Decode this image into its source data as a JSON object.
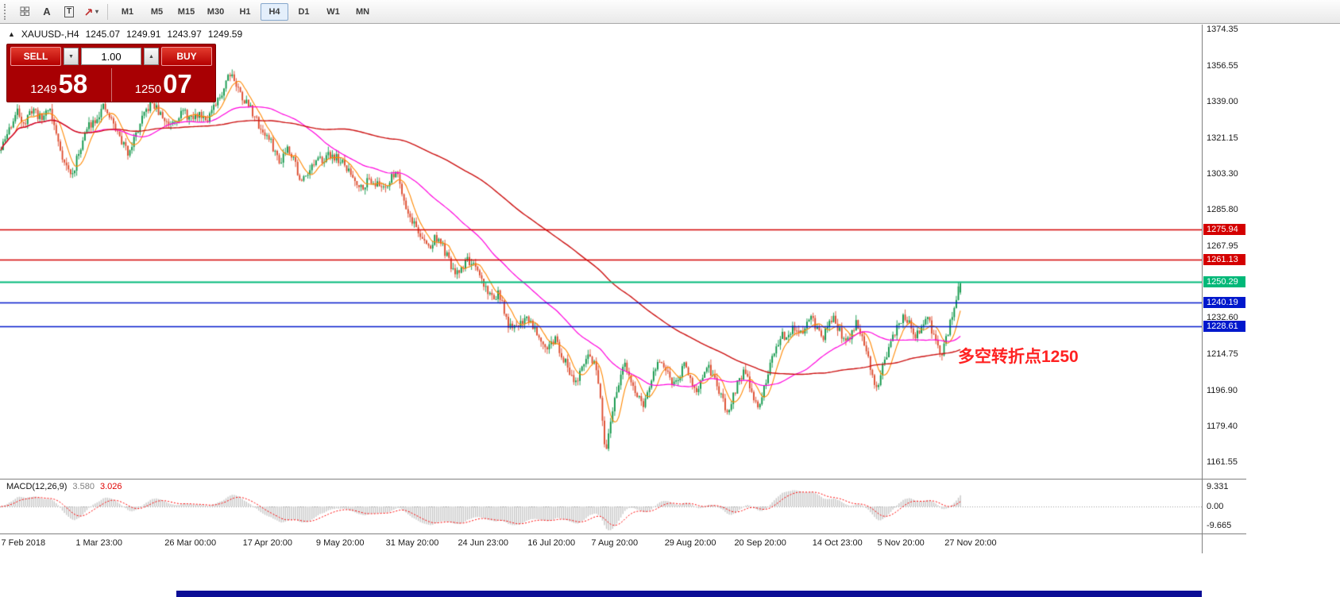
{
  "toolbar": {
    "timeframes": [
      "M1",
      "M5",
      "M15",
      "M30",
      "H1",
      "H4",
      "D1",
      "W1",
      "MN"
    ],
    "active_timeframe": "H4",
    "tools": {
      "text_tool": "A",
      "label_tool": "T"
    }
  },
  "icons": {
    "dropdown_caret": "▾",
    "volume_down": "▼",
    "volume_up": "▲",
    "symbol_arrow": "▲"
  },
  "header": {
    "symbol": "XAUUSD-,H4",
    "open": "1245.07",
    "high": "1249.91",
    "low": "1243.97",
    "close": "1249.59"
  },
  "trade_panel": {
    "sell_label": "SELL",
    "buy_label": "BUY",
    "volume": "1.00",
    "bid_small": "1249",
    "bid_big": "58",
    "ask_small": "1250",
    "ask_big": "07"
  },
  "annotation": {
    "text": "多空转折点1250",
    "color": "#ff2222"
  },
  "macd_panel": {
    "name": "MACD(12,26,9)",
    "value_main": "3.580",
    "value_signal": "3.026",
    "axis_labels": [
      "9.331",
      "0.00",
      "-9.665"
    ]
  },
  "chart_data": {
    "type": "candlestick",
    "title": "XAUUSD-,H4",
    "symbol": "XAUUSD-",
    "timeframe": "H4",
    "ylim": [
      1153.5,
      1376.8
    ],
    "y_axis_labels": [
      "1374.35",
      "1356.55",
      "1339.00",
      "1321.15",
      "1303.30",
      "1285.80",
      "1267.95",
      "1232.60",
      "1214.75",
      "1196.90",
      "1179.40",
      "1161.55"
    ],
    "x_axis": {
      "labels": [
        "7 Feb 2018",
        "1 Mar 23:00",
        "26 Mar 00:00",
        "17 Apr 20:00",
        "9 May 20:00",
        "31 May 20:00",
        "24 Jun 23:00",
        "16 Jul 20:00",
        "7 Aug 20:00",
        "29 Aug 20:00",
        "20 Sep 20:00",
        "14 Oct 23:00",
        "5 Nov 20:00",
        "27 Nov 20:00"
      ],
      "positions": [
        0.001,
        0.063,
        0.137,
        0.202,
        0.263,
        0.321,
        0.381,
        0.439,
        0.492,
        0.553,
        0.611,
        0.676,
        0.73,
        0.786
      ]
    },
    "last_bar": {
      "open": 1245.07,
      "high": 1249.91,
      "low": 1243.97,
      "close": 1249.59
    },
    "h_lines": [
      {
        "price": 1275.94,
        "color": "#d40000",
        "width": 1.5,
        "badge": "1275.94"
      },
      {
        "price": 1261.13,
        "color": "#d40000",
        "width": 1.5,
        "badge": "1261.13"
      },
      {
        "price": 1250.29,
        "color": "#00b878",
        "width": 2,
        "badge": "1250.29"
      },
      {
        "price": 1240.19,
        "color": "#0018cc",
        "width": 1.5,
        "badge": "1240.19"
      },
      {
        "price": 1228.61,
        "color": "#0018cc",
        "width": 1.5,
        "badge": "1228.61"
      }
    ],
    "moving_averages": [
      {
        "period": 8,
        "color": "#ff8800",
        "width": 1.1
      },
      {
        "period": 45,
        "color": "#ff00dd",
        "width": 1.2
      },
      {
        "period": 130,
        "color": "#cc1111",
        "width": 1.4
      }
    ],
    "bar_count": 470,
    "plot_fraction": 0.8,
    "volatility": 3.0,
    "seed": 11,
    "colors": {
      "up": "#0e9648",
      "down": "#dd4a2c"
    },
    "macd": {
      "fast": 12,
      "slow": 26,
      "signal_period": 9,
      "hist_color": "#c6c6c6",
      "signal_color": "#ff0000",
      "zero_color": "#9a9a9a"
    },
    "price_path": [
      [
        0.0,
        1315
      ],
      [
        0.008,
        1325
      ],
      [
        0.017,
        1334
      ],
      [
        0.025,
        1328
      ],
      [
        0.033,
        1336
      ],
      [
        0.042,
        1330
      ],
      [
        0.05,
        1337
      ],
      [
        0.058,
        1322
      ],
      [
        0.066,
        1309
      ],
      [
        0.074,
        1302
      ],
      [
        0.083,
        1317
      ],
      [
        0.091,
        1327
      ],
      [
        0.099,
        1331
      ],
      [
        0.107,
        1336
      ],
      [
        0.116,
        1329
      ],
      [
        0.124,
        1321
      ],
      [
        0.132,
        1314
      ],
      [
        0.14,
        1322
      ],
      [
        0.149,
        1332
      ],
      [
        0.157,
        1339
      ],
      [
        0.165,
        1333
      ],
      [
        0.174,
        1328
      ],
      [
        0.182,
        1331
      ],
      [
        0.19,
        1334
      ],
      [
        0.198,
        1330
      ],
      [
        0.207,
        1333
      ],
      [
        0.215,
        1331
      ],
      [
        0.223,
        1336
      ],
      [
        0.231,
        1344
      ],
      [
        0.236,
        1352
      ],
      [
        0.24,
        1354
      ],
      [
        0.245,
        1347
      ],
      [
        0.253,
        1340
      ],
      [
        0.26,
        1336
      ],
      [
        0.27,
        1326
      ],
      [
        0.28,
        1320
      ],
      [
        0.285,
        1315
      ],
      [
        0.29,
        1309
      ],
      [
        0.298,
        1317
      ],
      [
        0.306,
        1311
      ],
      [
        0.312,
        1298
      ],
      [
        0.318,
        1304
      ],
      [
        0.326,
        1308
      ],
      [
        0.335,
        1311
      ],
      [
        0.345,
        1313
      ],
      [
        0.355,
        1309
      ],
      [
        0.365,
        1303
      ],
      [
        0.375,
        1297
      ],
      [
        0.385,
        1301
      ],
      [
        0.395,
        1297
      ],
      [
        0.405,
        1299
      ],
      [
        0.412,
        1306
      ],
      [
        0.418,
        1295
      ],
      [
        0.424,
        1284
      ],
      [
        0.432,
        1278
      ],
      [
        0.44,
        1270
      ],
      [
        0.448,
        1267
      ],
      [
        0.453,
        1273
      ],
      [
        0.46,
        1268
      ],
      [
        0.468,
        1259
      ],
      [
        0.474,
        1253
      ],
      [
        0.48,
        1257
      ],
      [
        0.486,
        1262
      ],
      [
        0.493,
        1257
      ],
      [
        0.5,
        1252
      ],
      [
        0.507,
        1246
      ],
      [
        0.513,
        1242
      ],
      [
        0.518,
        1245
      ],
      [
        0.523,
        1238
      ],
      [
        0.528,
        1230
      ],
      [
        0.533,
        1226
      ],
      [
        0.54,
        1230
      ],
      [
        0.548,
        1233
      ],
      [
        0.555,
        1229
      ],
      [
        0.562,
        1223
      ],
      [
        0.57,
        1218
      ],
      [
        0.578,
        1222
      ],
      [
        0.585,
        1214
      ],
      [
        0.592,
        1207
      ],
      [
        0.6,
        1201
      ],
      [
        0.607,
        1208
      ],
      [
        0.612,
        1215
      ],
      [
        0.618,
        1211
      ],
      [
        0.622,
        1203
      ],
      [
        0.626,
        1186
      ],
      [
        0.63,
        1163
      ],
      [
        0.634,
        1176
      ],
      [
        0.638,
        1189
      ],
      [
        0.643,
        1200
      ],
      [
        0.65,
        1209
      ],
      [
        0.657,
        1202
      ],
      [
        0.663,
        1194
      ],
      [
        0.669,
        1189
      ],
      [
        0.675,
        1197
      ],
      [
        0.681,
        1206
      ],
      [
        0.687,
        1212
      ],
      [
        0.693,
        1206
      ],
      [
        0.7,
        1200
      ],
      [
        0.707,
        1205
      ],
      [
        0.713,
        1210
      ],
      [
        0.719,
        1203
      ],
      [
        0.725,
        1197
      ],
      [
        0.731,
        1201
      ],
      [
        0.737,
        1208
      ],
      [
        0.742,
        1204
      ],
      [
        0.748,
        1197
      ],
      [
        0.753,
        1191
      ],
      [
        0.757,
        1184
      ],
      [
        0.762,
        1193
      ],
      [
        0.768,
        1201
      ],
      [
        0.774,
        1206
      ],
      [
        0.78,
        1200
      ],
      [
        0.785,
        1193
      ],
      [
        0.79,
        1189
      ],
      [
        0.796,
        1198
      ],
      [
        0.802,
        1209
      ],
      [
        0.808,
        1219
      ],
      [
        0.814,
        1225
      ],
      [
        0.82,
        1221
      ],
      [
        0.826,
        1228
      ],
      [
        0.832,
        1223
      ],
      [
        0.838,
        1229
      ],
      [
        0.844,
        1234
      ],
      [
        0.85,
        1227
      ],
      [
        0.856,
        1222
      ],
      [
        0.862,
        1228
      ],
      [
        0.868,
        1233
      ],
      [
        0.874,
        1226
      ],
      [
        0.88,
        1220
      ],
      [
        0.886,
        1225
      ],
      [
        0.892,
        1231
      ],
      [
        0.898,
        1223
      ],
      [
        0.903,
        1214
      ],
      [
        0.908,
        1204
      ],
      [
        0.913,
        1198
      ],
      [
        0.918,
        1207
      ],
      [
        0.924,
        1216
      ],
      [
        0.93,
        1223
      ],
      [
        0.936,
        1229
      ],
      [
        0.942,
        1234
      ],
      [
        0.948,
        1228
      ],
      [
        0.954,
        1223
      ],
      [
        0.96,
        1229
      ],
      [
        0.965,
        1234
      ],
      [
        0.97,
        1227
      ],
      [
        0.975,
        1219
      ],
      [
        0.98,
        1214
      ],
      [
        0.985,
        1222
      ],
      [
        0.99,
        1231
      ],
      [
        0.995,
        1241
      ],
      [
        1.0,
        1249.6
      ]
    ]
  }
}
